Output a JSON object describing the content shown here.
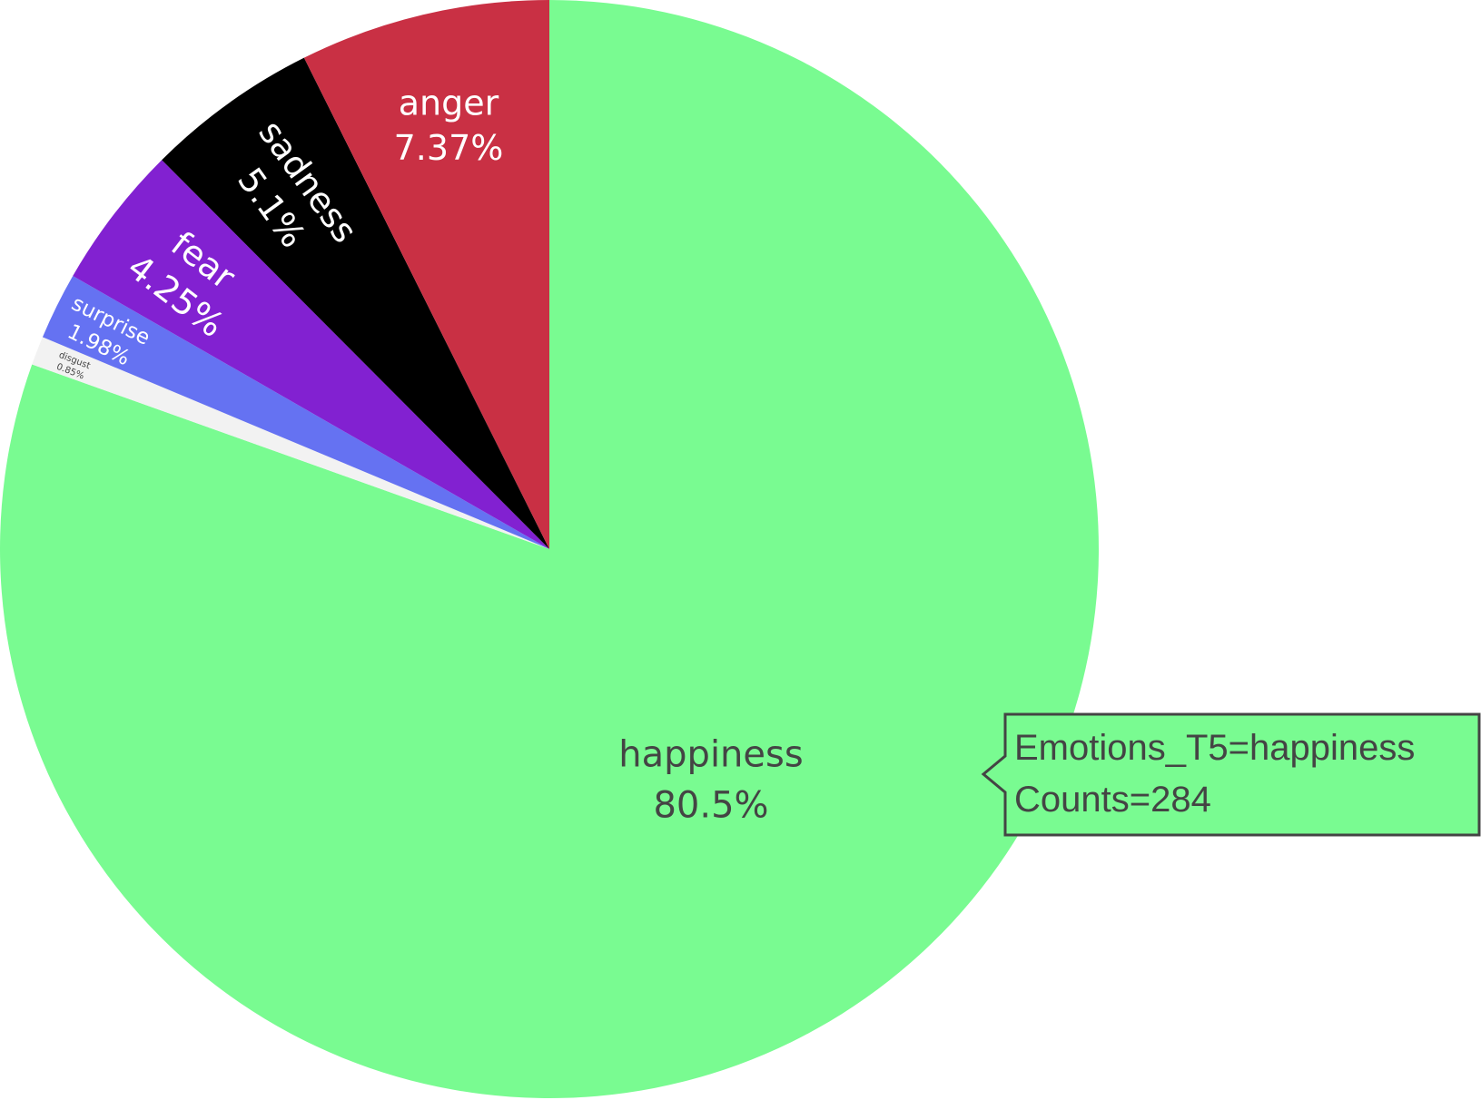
{
  "chart_data": {
    "type": "pie",
    "direction": "clockwise",
    "start": "top",
    "slices": [
      {
        "label": "happiness",
        "percent_text": "80.5%",
        "percent": 80.5,
        "count": 284,
        "color": "#79fb91",
        "text_color": "#444444"
      },
      {
        "label": "disgust",
        "percent_text": "0.85%",
        "percent": 0.85,
        "color": "#f2f2f2",
        "text_color": "#444444"
      },
      {
        "label": "surprise",
        "percent_text": "1.98%",
        "percent": 1.98,
        "color": "#6572f2",
        "text_color": "#ffffff"
      },
      {
        "label": "fear",
        "percent_text": "4.25%",
        "percent": 4.25,
        "color": "#8221d1",
        "text_color": "#ffffff"
      },
      {
        "label": "sadness",
        "percent_text": "5.1%",
        "percent": 5.1,
        "color": "#000000",
        "text_color": "#ffffff"
      },
      {
        "label": "anger",
        "percent_text": "7.37%",
        "percent": 7.37,
        "color": "#c93044",
        "text_color": "#ffffff"
      }
    ]
  },
  "hover": {
    "line1": "Emotions_T5=happiness",
    "line2": "Counts=284",
    "background": "#79fb91",
    "border": "#444444"
  }
}
